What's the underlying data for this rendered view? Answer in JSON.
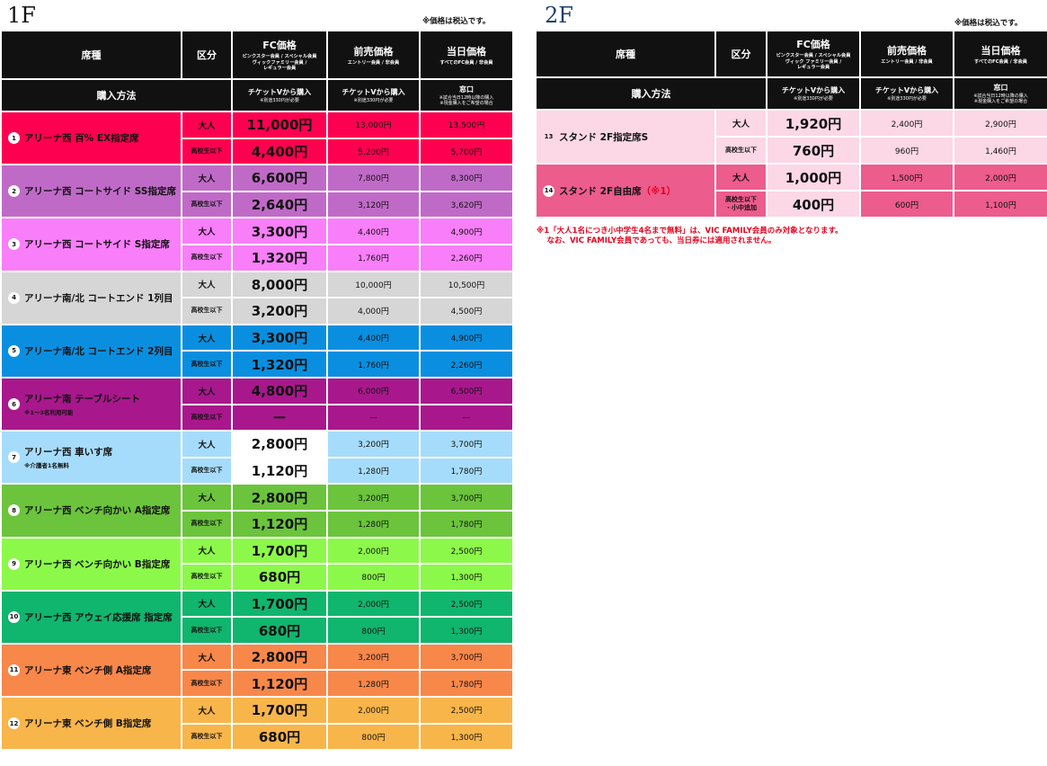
{
  "floor1": {
    "label": "1F",
    "tax_note": "※価格は税込です。",
    "headers": {
      "seat_type": "席種",
      "category": "区分",
      "fc_price": "FC価格",
      "fc_sub": "ピンクスター会員 / スペシャル会員\nヴィックファミリー会員 /\nレギュラー会員",
      "presale_price": "前売価格",
      "presale_sub": "エントリー会員 / 非会員",
      "sameday_price": "当日価格",
      "sameday_sub": "すべてのFC会員 / 非会員"
    },
    "purchase": {
      "label": "購入方法",
      "fc_method": "チケットVから購入",
      "fc_method_sub": "※別途330円が必要",
      "presale_method": "チケットVから購入",
      "presale_method_sub": "※別途330円が必要",
      "sameday_method": "窓口",
      "sameday_method_sub": "※試合当日12時以降の購入\n※現金購入をご希望の場合"
    },
    "seats": [
      {
        "num": "1",
        "name": "アリーナ西 百% EX指定席",
        "note": "",
        "color": "#fe0050",
        "fc_color": "#fe0050",
        "rows": [
          {
            "cat": "大人",
            "fc": "11,000円",
            "presale": "13,000円",
            "sameday": "13,500円"
          },
          {
            "cat": "高校生以下",
            "fc": "4,400円",
            "presale": "5,200円",
            "sameday": "5,700円"
          }
        ]
      },
      {
        "num": "2",
        "name": "アリーナ西 コートサイド SS指定席",
        "note": "",
        "color": "#c06ac8",
        "fc_color": "#c06ac8",
        "rows": [
          {
            "cat": "大人",
            "fc": "6,600円",
            "presale": "7,800円",
            "sameday": "8,300円"
          },
          {
            "cat": "高校生以下",
            "fc": "2,640円",
            "presale": "3,120円",
            "sameday": "3,620円"
          }
        ]
      },
      {
        "num": "3",
        "name": "アリーナ西 コートサイド S指定席",
        "note": "",
        "color": "#f97ef9",
        "fc_color": "#f97ef9",
        "rows": [
          {
            "cat": "大人",
            "fc": "3,300円",
            "presale": "4,400円",
            "sameday": "4,900円"
          },
          {
            "cat": "高校生以下",
            "fc": "1,320円",
            "presale": "1,760円",
            "sameday": "2,260円"
          }
        ]
      },
      {
        "num": "4",
        "name": "アリーナ南/北 コートエンド 1列目",
        "note": "",
        "color": "#d6d6d6",
        "fc_color": "#d6d6d6",
        "rows": [
          {
            "cat": "大人",
            "fc": "8,000円",
            "presale": "10,000円",
            "sameday": "10,500円"
          },
          {
            "cat": "高校生以下",
            "fc": "3,200円",
            "presale": "4,000円",
            "sameday": "4,500円"
          }
        ]
      },
      {
        "num": "5",
        "name": "アリーナ南/北 コートエンド 2列目",
        "note": "",
        "color": "#0a8fe0",
        "fc_color": "#0a8fe0",
        "rows": [
          {
            "cat": "大人",
            "fc": "3,300円",
            "presale": "4,400円",
            "sameday": "4,900円"
          },
          {
            "cat": "高校生以下",
            "fc": "1,320円",
            "presale": "1,760円",
            "sameday": "2,260円"
          }
        ]
      },
      {
        "num": "6",
        "name": "アリーナ南 テーブルシート",
        "note": "※1〜3名利用可能",
        "color": "#a8188c",
        "fc_color": "#a8188c",
        "rows": [
          {
            "cat": "大人",
            "fc": "4,800円",
            "presale": "6,000円",
            "sameday": "6,500円"
          },
          {
            "cat": "高校生以下",
            "fc": "ー",
            "presale": "ー",
            "sameday": "ー"
          }
        ]
      },
      {
        "num": "7",
        "name": "アリーナ西 車いす席",
        "note": "※介護者1名無料",
        "color": "#a6dcfb",
        "fc_color": "#ffffff",
        "rows": [
          {
            "cat": "大人",
            "fc": "2,800円",
            "presale": "3,200円",
            "sameday": "3,700円"
          },
          {
            "cat": "高校生以下",
            "fc": "1,120円",
            "presale": "1,280円",
            "sameday": "1,780円"
          }
        ]
      },
      {
        "num": "8",
        "name": "アリーナ西 ベンチ向かい A指定席",
        "note": "",
        "color": "#6bc43c",
        "fc_color": "#6bc43c",
        "rows": [
          {
            "cat": "大人",
            "fc": "2,800円",
            "presale": "3,200円",
            "sameday": "3,700円"
          },
          {
            "cat": "高校生以下",
            "fc": "1,120円",
            "presale": "1,280円",
            "sameday": "1,780円"
          }
        ]
      },
      {
        "num": "9",
        "name": "アリーナ西 ベンチ向かい B指定席",
        "note": "",
        "color": "#8cf94a",
        "fc_color": "#8cf94a",
        "rows": [
          {
            "cat": "大人",
            "fc": "1,700円",
            "presale": "2,000円",
            "sameday": "2,500円"
          },
          {
            "cat": "高校生以下",
            "fc": "680円",
            "presale": "800円",
            "sameday": "1,300円"
          }
        ]
      },
      {
        "num": "10",
        "name": "アリーナ西 アウェイ応援席 指定席",
        "note": "",
        "color": "#10b56e",
        "fc_color": "#10b56e",
        "rows": [
          {
            "cat": "大人",
            "fc": "1,700円",
            "presale": "2,000円",
            "sameday": "2,500円"
          },
          {
            "cat": "高校生以下",
            "fc": "680円",
            "presale": "800円",
            "sameday": "1,300円"
          }
        ]
      },
      {
        "num": "11",
        "name": "アリーナ東 ベンチ側 A指定席",
        "note": "",
        "color": "#f8874a",
        "fc_color": "#f8874a",
        "rows": [
          {
            "cat": "大人",
            "fc": "2,800円",
            "presale": "3,200円",
            "sameday": "3,700円"
          },
          {
            "cat": "高校生以下",
            "fc": "1,120円",
            "presale": "1,280円",
            "sameday": "1,780円"
          }
        ]
      },
      {
        "num": "12",
        "name": "アリーナ東 ベンチ側 B指定席",
        "note": "",
        "color": "#f8b54a",
        "fc_color": "#f8b54a",
        "rows": [
          {
            "cat": "大人",
            "fc": "1,700円",
            "presale": "2,000円",
            "sameday": "2,500円"
          },
          {
            "cat": "高校生以下",
            "fc": "680円",
            "presale": "800円",
            "sameday": "1,300円"
          }
        ]
      }
    ]
  },
  "floor2": {
    "label": "2F",
    "tax_note": "※価格は税込です。",
    "headers": {
      "seat_type": "席種",
      "category": "区分",
      "fc_price": "FC価格",
      "fc_sub": "ピンクスター会員 / スペシャル会員\nヴィック ファミリー会員 /\nレギュラー会員",
      "presale_price": "前売価格",
      "presale_sub": "エントリー会員 / 非会員",
      "sameday_price": "当日価格",
      "sameday_sub": "すべてのFC会員 / 非会員"
    },
    "purchase": {
      "label": "購入方法",
      "fc_method": "チケットVから購入",
      "fc_method_sub": "※別途330円が必要",
      "presale_method": "チケットVから購入",
      "presale_method_sub": "※別途330円が必要",
      "sameday_method": "窓口",
      "sameday_method_sub": "※試合当日12時以降の購入\n※現金購入をご希望の場合"
    },
    "seats": [
      {
        "num": "13",
        "name": "スタンド 2F指定席S",
        "suffix": "",
        "color": "#fcd7e6",
        "fc_color": "#fcd7e6",
        "rows": [
          {
            "cat": "大人",
            "fc": "1,920円",
            "presale": "2,400円",
            "sameday": "2,900円"
          },
          {
            "cat": "高校生以下",
            "fc": "760円",
            "presale": "960円",
            "sameday": "1,460円"
          }
        ]
      },
      {
        "num": "14",
        "name": "スタンド 2F自由席",
        "suffix": "（※1）",
        "color": "#ec5c8c",
        "fc_color": "#fcd7e6",
        "rows": [
          {
            "cat": "大人",
            "fc": "1,000円",
            "presale": "1,500円",
            "sameday": "2,000円"
          },
          {
            "cat": "高校生以下\n・小中追加",
            "fc": "400円",
            "presale": "600円",
            "sameday": "1,100円"
          }
        ]
      }
    ],
    "footnote": "※1「大人1名につき小中学生4名まで無料」は、VIC FAMILY会員のみ対象となります。\n　 なお、VIC FAMILY会員であっても、当日券には適用されません。"
  }
}
